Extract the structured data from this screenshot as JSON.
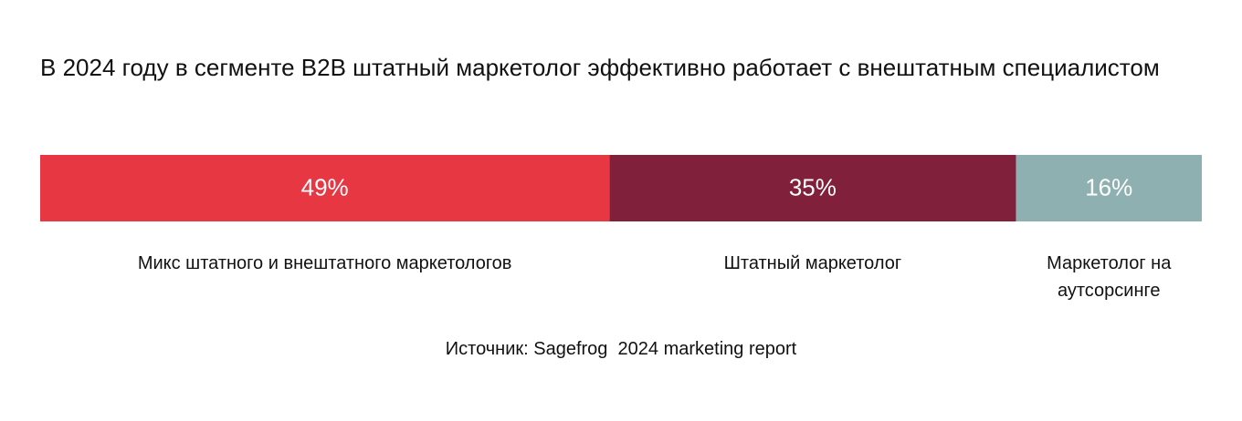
{
  "chart_data": {
    "type": "stacked-bar",
    "title": "В 2024 году в сегменте B2B штатный маркетолог эффективно работает с внештатным специалистом",
    "series": [
      {
        "name": "Микс штатного и внештатного маркетологов",
        "color": "#e63743",
        "values": [
          49
        ],
        "value_labels": [
          "49%"
        ]
      },
      {
        "name": "Штатный маркетолог",
        "color": "#80203a",
        "values": [
          35
        ],
        "value_labels": [
          "35%"
        ]
      },
      {
        "name": "Маркетолог на аутсорсинге",
        "color": "#8fb0b1",
        "values": [
          16
        ],
        "value_labels": [
          "16%"
        ]
      }
    ],
    "xlim": [
      0,
      100
    ],
    "source": "Источник: Sagefrog  2024 marketing report"
  }
}
